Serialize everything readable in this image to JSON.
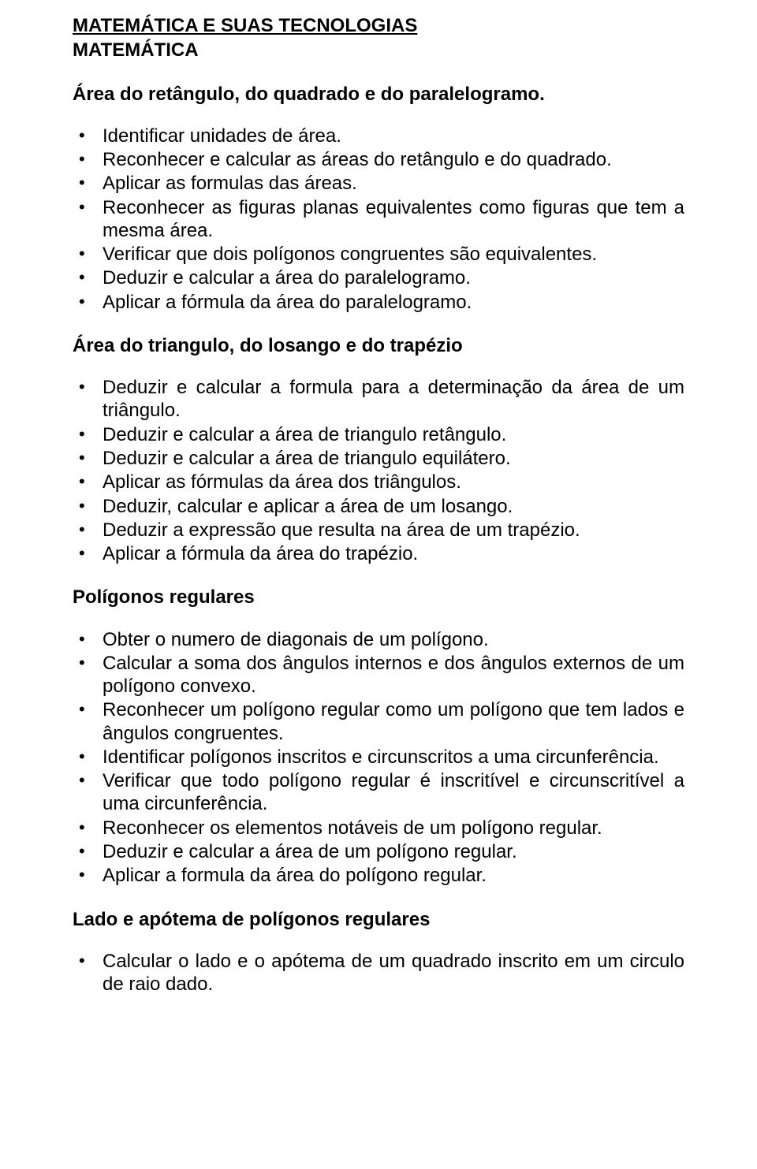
{
  "title": "MATEMÁTICA E SUAS TECNOLOGIAS",
  "subtitle": "MATEMÁTICA",
  "sections": [
    {
      "heading": "Área do retângulo, do quadrado e do paralelogramo.",
      "items": [
        "Identificar unidades de área.",
        "Reconhecer e calcular as áreas do retângulo e do quadrado.",
        "Aplicar as formulas das áreas.",
        "Reconhecer as figuras planas equivalentes como figuras que tem a mesma área.",
        "Verificar que dois polígonos congruentes são equivalentes.",
        "Deduzir e calcular a área do paralelogramo.",
        "Aplicar a fórmula da área do paralelogramo."
      ]
    },
    {
      "heading": "Área do triangulo, do losango e do trapézio",
      "items": [
        "Deduzir e calcular a formula para a determinação da área de um triângulo.",
        "Deduzir e calcular a área de triangulo retângulo.",
        "Deduzir e calcular a área de triangulo equilátero.",
        "Aplicar as fórmulas da área dos triângulos.",
        "Deduzir, calcular e aplicar a área de um losango.",
        "Deduzir a expressão que resulta na área de um trapézio.",
        "Aplicar a fórmula da área do trapézio."
      ]
    },
    {
      "heading": "Polígonos regulares",
      "items": [
        "Obter o numero de diagonais de um polígono.",
        "Calcular a soma dos ângulos internos e dos ângulos externos de um polígono convexo.",
        "Reconhecer um polígono regular como um polígono que tem lados e ângulos congruentes.",
        "Identificar polígonos inscritos e circunscritos a uma circunferência.",
        "Verificar que todo polígono regular é inscritível e circunscritível a uma circunferência.",
        "Reconhecer os elementos notáveis de um polígono regular.",
        "Deduzir e calcular a área de um polígono regular.",
        "Aplicar a formula da área do polígono regular."
      ]
    },
    {
      "heading": "Lado e apótema de polígonos regulares",
      "items": [
        "Calcular o lado e o apótema de um quadrado inscrito em um circulo de raio dado."
      ]
    }
  ]
}
